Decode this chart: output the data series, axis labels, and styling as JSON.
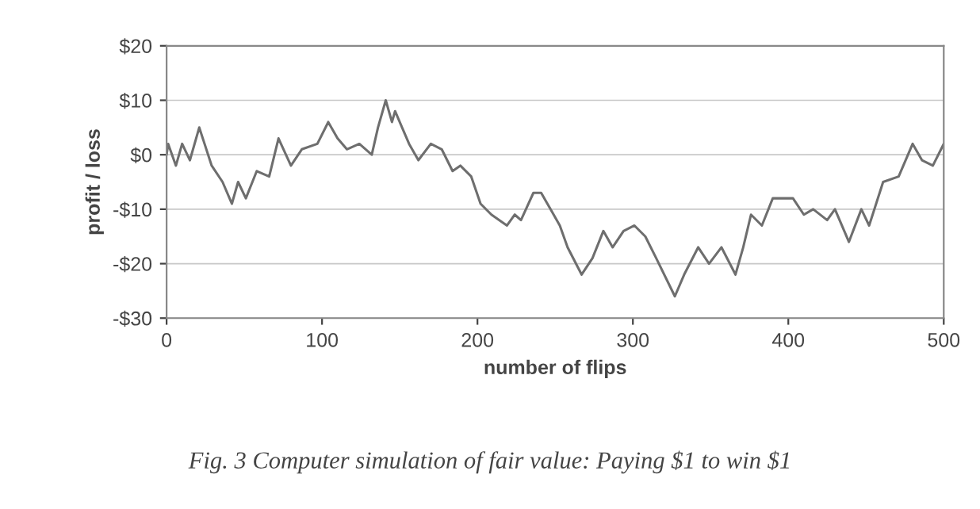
{
  "chart_data": {
    "type": "line",
    "xlabel": "number of flips",
    "ylabel": "profit / loss",
    "annotations": [
      "Fig. 3 Computer simulation of fair value: Paying $1 to win $1"
    ],
    "series": [
      {
        "color": "#6e6e6e",
        "x": [
          0,
          1,
          6,
          10,
          15,
          21,
          29,
          36,
          42,
          46,
          51,
          58,
          66,
          72,
          80,
          87,
          97,
          104,
          110,
          116,
          124,
          132,
          136,
          141,
          145,
          147,
          156,
          162,
          170,
          177,
          184,
          189,
          196,
          202,
          209,
          219,
          224,
          228,
          236,
          241,
          247,
          253,
          258,
          267,
          274,
          281,
          287,
          294,
          301,
          308,
          315,
          327,
          333,
          342,
          349,
          357,
          366,
          371,
          376,
          383,
          390,
          403,
          410,
          416,
          425,
          430,
          439,
          447,
          452,
          461,
          471,
          480,
          486,
          493,
          500
        ],
        "values": [
          0,
          2,
          -2,
          2,
          -1,
          5,
          -2,
          -5,
          -9,
          -5,
          -8,
          -3,
          -4,
          3,
          -2,
          1,
          2,
          6,
          3,
          1,
          2,
          0,
          5,
          10,
          6,
          8,
          2,
          -1,
          2,
          1,
          -3,
          -2,
          -4,
          -9,
          -11,
          -13,
          -11,
          -12,
          -7,
          -7,
          -10,
          -13,
          -17,
          -22,
          -19,
          -14,
          -17,
          -14,
          -13,
          -15,
          -19,
          -26,
          -22,
          -17,
          -20,
          -17,
          -22,
          -17,
          -11,
          -13,
          -8,
          -8,
          -11,
          -10,
          -12,
          -10,
          -16,
          -10,
          -13,
          -5,
          -4,
          2,
          -1,
          -2,
          2
        ]
      }
    ],
    "xlim": [
      0,
      500
    ],
    "xticks": [
      0,
      100,
      200,
      300,
      400,
      500
    ],
    "ylim": [
      -30,
      20
    ],
    "yticks": [
      {
        "value": -30,
        "label": "-$30"
      },
      {
        "value": -20,
        "label": "-$20"
      },
      {
        "value": -10,
        "label": "-$10"
      },
      {
        "value": 0,
        "label": "$0"
      },
      {
        "value": 10,
        "label": "$10"
      },
      {
        "value": 20,
        "label": "$20"
      }
    ],
    "grid": "y",
    "legend": false,
    "marker": "none",
    "line_style": "solid"
  }
}
